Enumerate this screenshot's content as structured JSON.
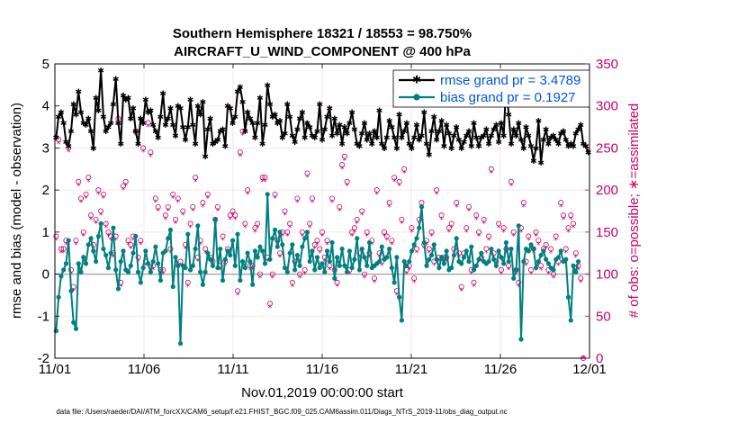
{
  "chart_data": {
    "type": "line",
    "title_line1": "Southern Hemisphere 18321 / 18553 = 98.750%",
    "title_line2": "AIRCRAFT_U_WIND_COMPONENT @ 400 hPa",
    "xlabel": "Nov.01,2019 00:00:00 start",
    "ylabel_left": "rmse and bias (model - observation)",
    "ylabel_right": "# of obs: o=possible; ∗=assimilated",
    "footer": "data file: /Users/raeder/DAI/ATM_forcXX/CAM6_setup/f.e21.FHIST_BGC.f09_025.CAM6assim.011/Diags_NTrS_2019-11/obs_diag_output.nc",
    "x_range": [
      0,
      30
    ],
    "x_ticks": [
      0,
      5,
      10,
      15,
      20,
      25,
      30
    ],
    "x_tick_labels": [
      "11/01",
      "11/06",
      "11/11",
      "11/16",
      "11/21",
      "11/26",
      "12/01"
    ],
    "ylim_left": [
      -2,
      5
    ],
    "y_ticks_left": [
      -2,
      -1,
      0,
      1,
      2,
      3,
      4,
      5
    ],
    "ylim_right": [
      0,
      350
    ],
    "y_ticks_right": [
      0,
      50,
      100,
      150,
      200,
      250,
      300,
      350
    ],
    "colors": {
      "rmse": "#000000",
      "bias": "#008080",
      "obs": "#cc0066",
      "legend_text": "#0055dd",
      "zero_line": "#aaaaaa"
    },
    "legend": [
      {
        "label": "rmse grand pr = 3.4789"
      },
      {
        "label": "bias grand pr = 0.1927"
      }
    ],
    "rmse": [
      3.25,
      3.75,
      3.85,
      3.6,
      3.15,
      3.05,
      3.4,
      4.05,
      3.8,
      4.35,
      3.85,
      3.6,
      3.55,
      3.7,
      3.4,
      3.0,
      4.2,
      3.9,
      4.85,
      3.75,
      3.4,
      3.5,
      3.6,
      4.05,
      4.65,
      3.6,
      3.1,
      4.25,
      4.15,
      4.2,
      3.7,
      3.95,
      3.4,
      3.1,
      3.7,
      3.6,
      4.15,
      3.85,
      3.9,
      3.55,
      3.4,
      3.25,
      3.75,
      4.3,
      3.55,
      3.7,
      3.95,
      3.55,
      3.3,
      4.0,
      3.95,
      3.5,
      3.2,
      3.5,
      4.15,
      3.55,
      3.1,
      4.0,
      3.8,
      4.1,
      2.8,
      3.45,
      3.7,
      3.1,
      3.15,
      3.2,
      3.4,
      3.45,
      3.05,
      4.0,
      3.95,
      3.6,
      3.75,
      4.35,
      4.45,
      4.1,
      3.4,
      3.85,
      3.7,
      3.6,
      3.25,
      3.6,
      4.2,
      3.1,
      3.55,
      4.5,
      4.05,
      3.75,
      3.8,
      3.6,
      3.65,
      3.25,
      3.35,
      4.05,
      3.75,
      3.3,
      3.15,
      3.45,
      3.7,
      3.85,
      3.25,
      3.6,
      3.5,
      3.3,
      3.25,
      3.4,
      4.05,
      3.2,
      3.45,
      3.75,
      3.95,
      3.3,
      3.7,
      3.35,
      3.55,
      3.1,
      3.5,
      3.35,
      3.6,
      3.85,
      3.45,
      3.1,
      3.05,
      3.35,
      3.6,
      3.2,
      3.35,
      3.1,
      3.4,
      3.25,
      3.9,
      3.1,
      3.0,
      3.25,
      3.65,
      3.5,
      3.25,
      3.0,
      3.8,
      3.25,
      3.4,
      3.6,
      3.1,
      3.0,
      3.25,
      3.55,
      3.2,
      3.3,
      3.85,
      3.1,
      2.85,
      3.4,
      3.75,
      3.2,
      3.4,
      3.65,
      3.05,
      3.55,
      3.35,
      3.0,
      3.3,
      3.5,
      3.2,
      3.0,
      3.15,
      3.3,
      3.4,
      3.05,
      3.6,
      3.25,
      3.05,
      3.25,
      3.3,
      3.45,
      3.1,
      3.3,
      3.45,
      3.55,
      3.15,
      3.6,
      3.3,
      4.55,
      3.8,
      3.1,
      3.45,
      3.3,
      3.6,
      3.2,
      3.0,
      3.5,
      3.3,
      3.05,
      2.7,
      3.0,
      3.65,
      2.65,
      3.2,
      3.45,
      3.1,
      3.25,
      3.3,
      3.2,
      3.1,
      3.35,
      3.4,
      3.2,
      3.05,
      3.1,
      3.05,
      3.35,
      3.45,
      3.55,
      3.1,
      3.05,
      2.9
    ],
    "bias": [
      -1.35,
      -0.55,
      -0.05,
      0.1,
      0.25,
      0.8,
      -0.4,
      -1.15,
      -1.3,
      0.25,
      0.05,
      0.4,
      0.25,
      0.7,
      0.85,
      0.55,
      0.3,
      0.9,
      1.2,
      0.6,
      0.45,
      0.15,
      0.5,
      1.1,
      0.1,
      -0.35,
      0.3,
      0.55,
      0.1,
      0.05,
      0.2,
      0.5,
      0.9,
      0.05,
      -0.2,
      0.15,
      0.55,
      0.25,
      0.05,
      0.3,
      0.65,
      0.25,
      -0.15,
      0.5,
      0.55,
      0.85,
      1.05,
      -0.3,
      0.4,
      0.2,
      -1.65,
      0.2,
      0.15,
      0.95,
      0.1,
      0.2,
      0.6,
      1.15,
      0.05,
      -0.25,
      0.05,
      0.5,
      0.35,
      0.2,
      1.3,
      0.15,
      0.6,
      -0.15,
      0.35,
      0.55,
      0.45,
      0.8,
      0.2,
      0.95,
      -0.15,
      0.3,
      0.15,
      0.5,
      0.3,
      -0.25,
      0.55,
      0.4,
      0.65,
      0.55,
      0.25,
      1.9,
      0.35,
      0.85,
      1.05,
      0.65,
      1.0,
      0.7,
      0.15,
      0.05,
      0.5,
      0.7,
      0.1,
      0.45,
      0.2,
      0.65,
      0.85,
      1.0,
      0.3,
      0.55,
      0.1,
      0.4,
      0.15,
      0.25,
      0.05,
      0.55,
      0.3,
      0.75,
      -0.1,
      0.4,
      0.2,
      0.6,
      0.2,
      0.05,
      0.55,
      0.15,
      0.35,
      0.85,
      0.1,
      0.6,
      0.4,
      0.2,
      0.75,
      0.15,
      0.2,
      0.25,
      0.3,
      0.65,
      0.35,
      0.4,
      0.6,
      0.15,
      -0.2,
      0.4,
      -0.55,
      -1.1,
      0.3,
      0.2,
      0.3,
      0.55,
      0.7,
      0.85,
      1.1,
      1.6,
      0.75,
      0.2,
      0.35,
      0.45,
      0.7,
      0.35,
      0.15,
      0.4,
      0.25,
      0.55,
      0.1,
      0.15,
      0.45,
      0.85,
      0.3,
      0.25,
      0.4,
      0.55,
      0.3,
      0.65,
      0.1,
      0.2,
      0.35,
      0.5,
      0.3,
      0.25,
      0.3,
      0.6,
      0.35,
      0.2,
      0.55,
      0.4,
      0.25,
      0.75,
      0.3,
      0.6,
      -0.1,
      0.1,
      1.15,
      -1.55,
      0.3,
      0.6,
      0.55,
      0.7,
      0.6,
      0.15,
      0.3,
      0.45,
      0.55,
      0.35,
      0.25,
      0.15,
      0.1,
      0.35,
      0.4,
      0.55,
      0.3,
      0.35,
      -0.55,
      -1.1,
      0.2,
      0.05,
      0.3
    ],
    "obs_possible": [
      145,
      260,
      130,
      130,
      140,
      250,
      105,
      85,
      140,
      210,
      190,
      150,
      195,
      215,
      170,
      135,
      165,
      200,
      175,
      195,
      160,
      150,
      145,
      125,
      145,
      285,
      90,
      205,
      210,
      140,
      135,
      145,
      270,
      120,
      140,
      250,
      115,
      280,
      245,
      110,
      190,
      180,
      105,
      105,
      170,
      180,
      130,
      195,
      165,
      190,
      115,
      175,
      135,
      90,
      160,
      180,
      215,
      120,
      140,
      185,
      130,
      195,
      120,
      115,
      165,
      180,
      110,
      145,
      115,
      130,
      170,
      175,
      170,
      80,
      245,
      270,
      160,
      200,
      110,
      110,
      155,
      160,
      100,
      215,
      215,
      120,
      65,
      100,
      195,
      140,
      125,
      150,
      175,
      150,
      160,
      90,
      115,
      190,
      100,
      150,
      105,
      220,
      160,
      190,
      135,
      140,
      130,
      150,
      120,
      140,
      110,
      190,
      105,
      90,
      180,
      230,
      240,
      210,
      105,
      150,
      155,
      165,
      125,
      175,
      100,
      150,
      125,
      140,
      95,
      200,
      125,
      115,
      150,
      145,
      185,
      140,
      215,
      80,
      210,
      165,
      225,
      105,
      110,
      155,
      95,
      130,
      165,
      185,
      135,
      140,
      130,
      150,
      115,
      200,
      120,
      170,
      120,
      120,
      155,
      160,
      130,
      185,
      125,
      85,
      125,
      155,
      180,
      105,
      90,
      170,
      150,
      120,
      165,
      130,
      145,
      225,
      125,
      115,
      160,
      105,
      155,
      130,
      110,
      210,
      150,
      105,
      90,
      155,
      185,
      115,
      145,
      105,
      130,
      150,
      140,
      110,
      130,
      135,
      105,
      130,
      100,
      145,
      115,
      185,
      170,
      130,
      155,
      170,
      160,
      125,
      110,
      95,
      0
    ],
    "obs_assimilated": [
      140,
      255,
      125,
      125,
      135,
      245,
      100,
      80,
      135,
      205,
      185,
      145,
      190,
      210,
      165,
      130,
      160,
      195,
      170,
      190,
      155,
      145,
      140,
      120,
      140,
      280,
      85,
      200,
      205,
      135,
      130,
      140,
      265,
      115,
      135,
      245,
      110,
      275,
      240,
      105,
      185,
      175,
      100,
      100,
      165,
      175,
      125,
      190,
      160,
      185,
      110,
      170,
      130,
      85,
      155,
      175,
      210,
      115,
      135,
      180,
      125,
      190,
      115,
      110,
      160,
      175,
      105,
      140,
      110,
      125,
      165,
      170,
      165,
      75,
      240,
      265,
      155,
      195,
      105,
      105,
      150,
      155,
      95,
      210,
      210,
      115,
      60,
      95,
      190,
      135,
      120,
      145,
      170,
      145,
      155,
      85,
      110,
      185,
      95,
      145,
      100,
      215,
      155,
      185,
      130,
      135,
      125,
      145,
      115,
      135,
      105,
      185,
      100,
      85,
      175,
      225,
      235,
      205,
      100,
      145,
      150,
      160,
      120,
      170,
      95,
      145,
      120,
      135,
      90,
      195,
      120,
      110,
      145,
      140,
      180,
      135,
      210,
      75,
      205,
      160,
      220,
      100,
      105,
      150,
      90,
      125,
      160,
      180,
      130,
      135,
      125,
      145,
      110,
      195,
      115,
      165,
      115,
      115,
      150,
      155,
      125,
      180,
      120,
      80,
      120,
      150,
      175,
      100,
      85,
      165,
      145,
      115,
      160,
      125,
      140,
      220,
      120,
      110,
      155,
      100,
      150,
      125,
      105,
      205,
      145,
      100,
      85,
      150,
      180,
      110,
      140,
      100,
      125,
      145,
      135,
      105,
      125,
      130,
      100,
      125,
      95,
      140,
      110,
      180,
      165,
      125,
      150,
      165,
      155,
      120,
      105,
      90,
      0
    ]
  }
}
